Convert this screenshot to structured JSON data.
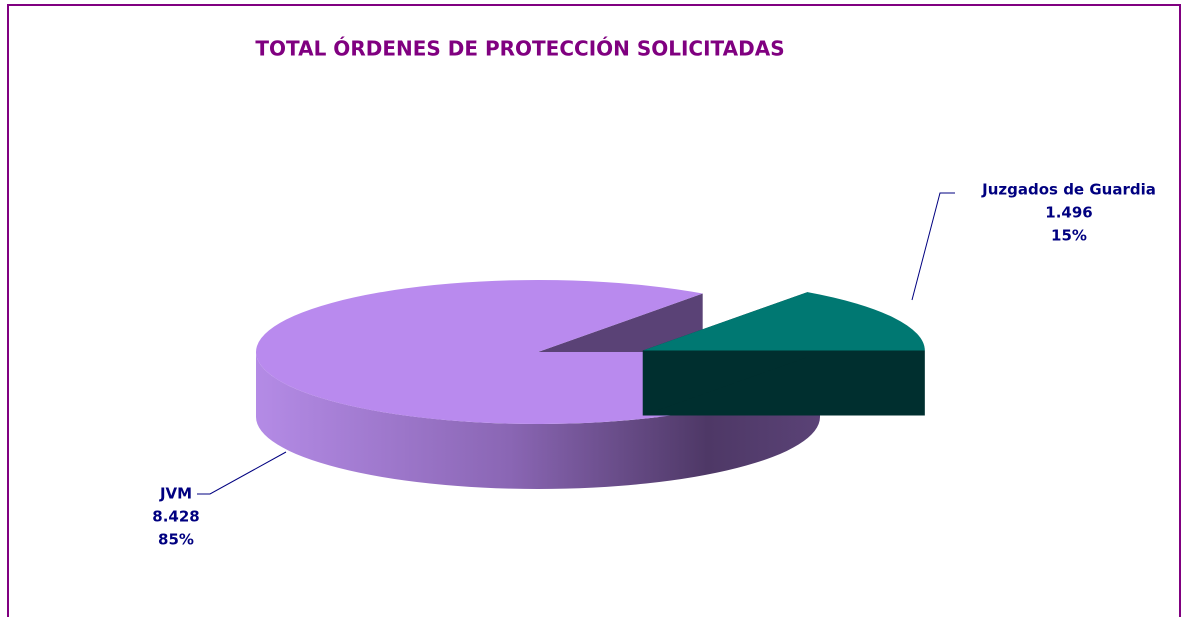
{
  "chart_data": {
    "type": "pie",
    "title": "TOTAL ÓRDENES DE PROTECCIÓN SOLICITADAS",
    "categories": [
      "JVM",
      "Juzgados de Guardia"
    ],
    "values": [
      8428,
      1496
    ],
    "value_labels": [
      "8.428",
      "1.496"
    ],
    "percents": [
      85,
      15
    ],
    "percent_labels": [
      "85%",
      "15%"
    ],
    "colors": [
      "#b98aee",
      "#007872"
    ]
  }
}
